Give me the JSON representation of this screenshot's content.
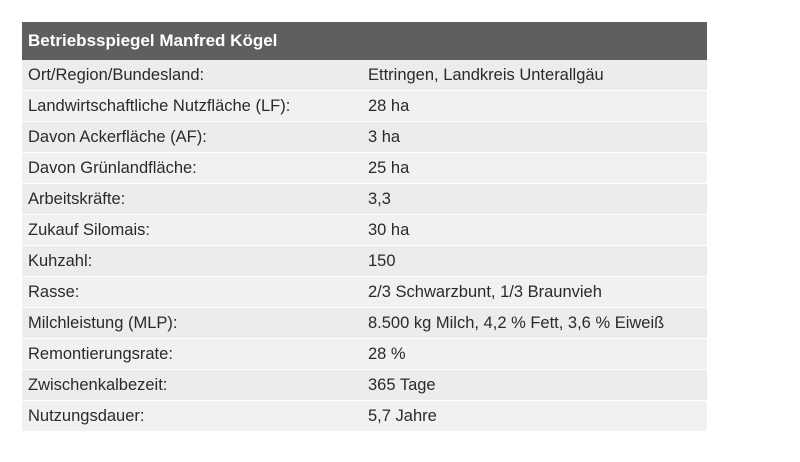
{
  "table": {
    "title": "Betriebsspiegel Manfred Kögel",
    "rows": [
      {
        "label": "Ort/Region/Bundesland:",
        "value": "Ettringen, Landkreis Unterallgäu"
      },
      {
        "label": "Landwirtschaftliche Nutzfläche (LF):",
        "value": "28 ha"
      },
      {
        "label": "Davon Ackerfläche (AF):",
        "value": "3 ha"
      },
      {
        "label": "Davon Grünlandfläche:",
        "value": "25 ha"
      },
      {
        "label": "Arbeitskräfte:",
        "value": "3,3"
      },
      {
        "label": "Zukauf Silomais:",
        "value": "30 ha"
      },
      {
        "label": "Kuhzahl:",
        "value": "150"
      },
      {
        "label": "Rasse:",
        "value": "2/3 Schwarzbunt, 1/3 Braunvieh"
      },
      {
        "label": "Milchleistung (MLP):",
        "value": "8.500 kg Milch, 4,2 % Fett, 3,6 % Eiweiß"
      },
      {
        "label": "Remontierungsrate:",
        "value": "28 %"
      },
      {
        "label": "Zwischenkalbezeit:",
        "value": "365 Tage"
      },
      {
        "label": "Nutzungsdauer:",
        "value": "5,7 Jahre"
      }
    ]
  },
  "colors": {
    "header_bg": "#5f5f5f",
    "header_text": "#ffffff",
    "row_bg": "#ececec",
    "text": "#2a2a2a"
  }
}
